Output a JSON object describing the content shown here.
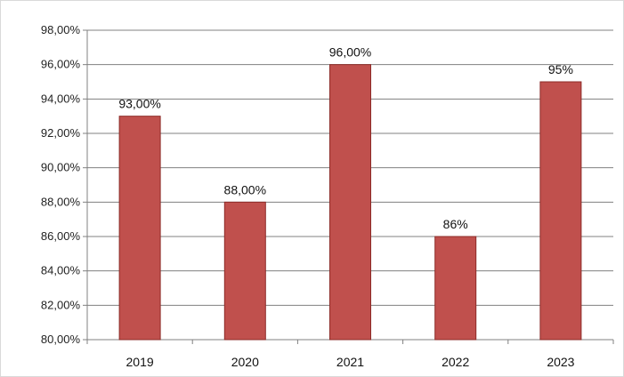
{
  "chart_data": {
    "type": "bar",
    "categories": [
      "2019",
      "2020",
      "2021",
      "2022",
      "2023"
    ],
    "values": [
      93.0,
      88.0,
      96.0,
      86.0,
      95.0
    ],
    "data_labels": [
      "93,00%",
      "88,00%",
      "96,00%",
      "86%",
      "95%"
    ],
    "title": "",
    "xlabel": "",
    "ylabel": "",
    "ylim": [
      80,
      98
    ],
    "y_ticks": [
      80,
      82,
      84,
      86,
      88,
      90,
      92,
      94,
      96,
      98
    ],
    "y_tick_labels": [
      "80,00%",
      "82,00%",
      "84,00%",
      "86,00%",
      "88,00%",
      "90,00%",
      "92,00%",
      "94,00%",
      "96,00%",
      "98,00%"
    ],
    "grid": true,
    "legend": "none",
    "colors": {
      "bar_fill": "#c0504d",
      "bar_stroke": "#8c2b28",
      "grid": "#808080",
      "axis": "#808080"
    }
  }
}
